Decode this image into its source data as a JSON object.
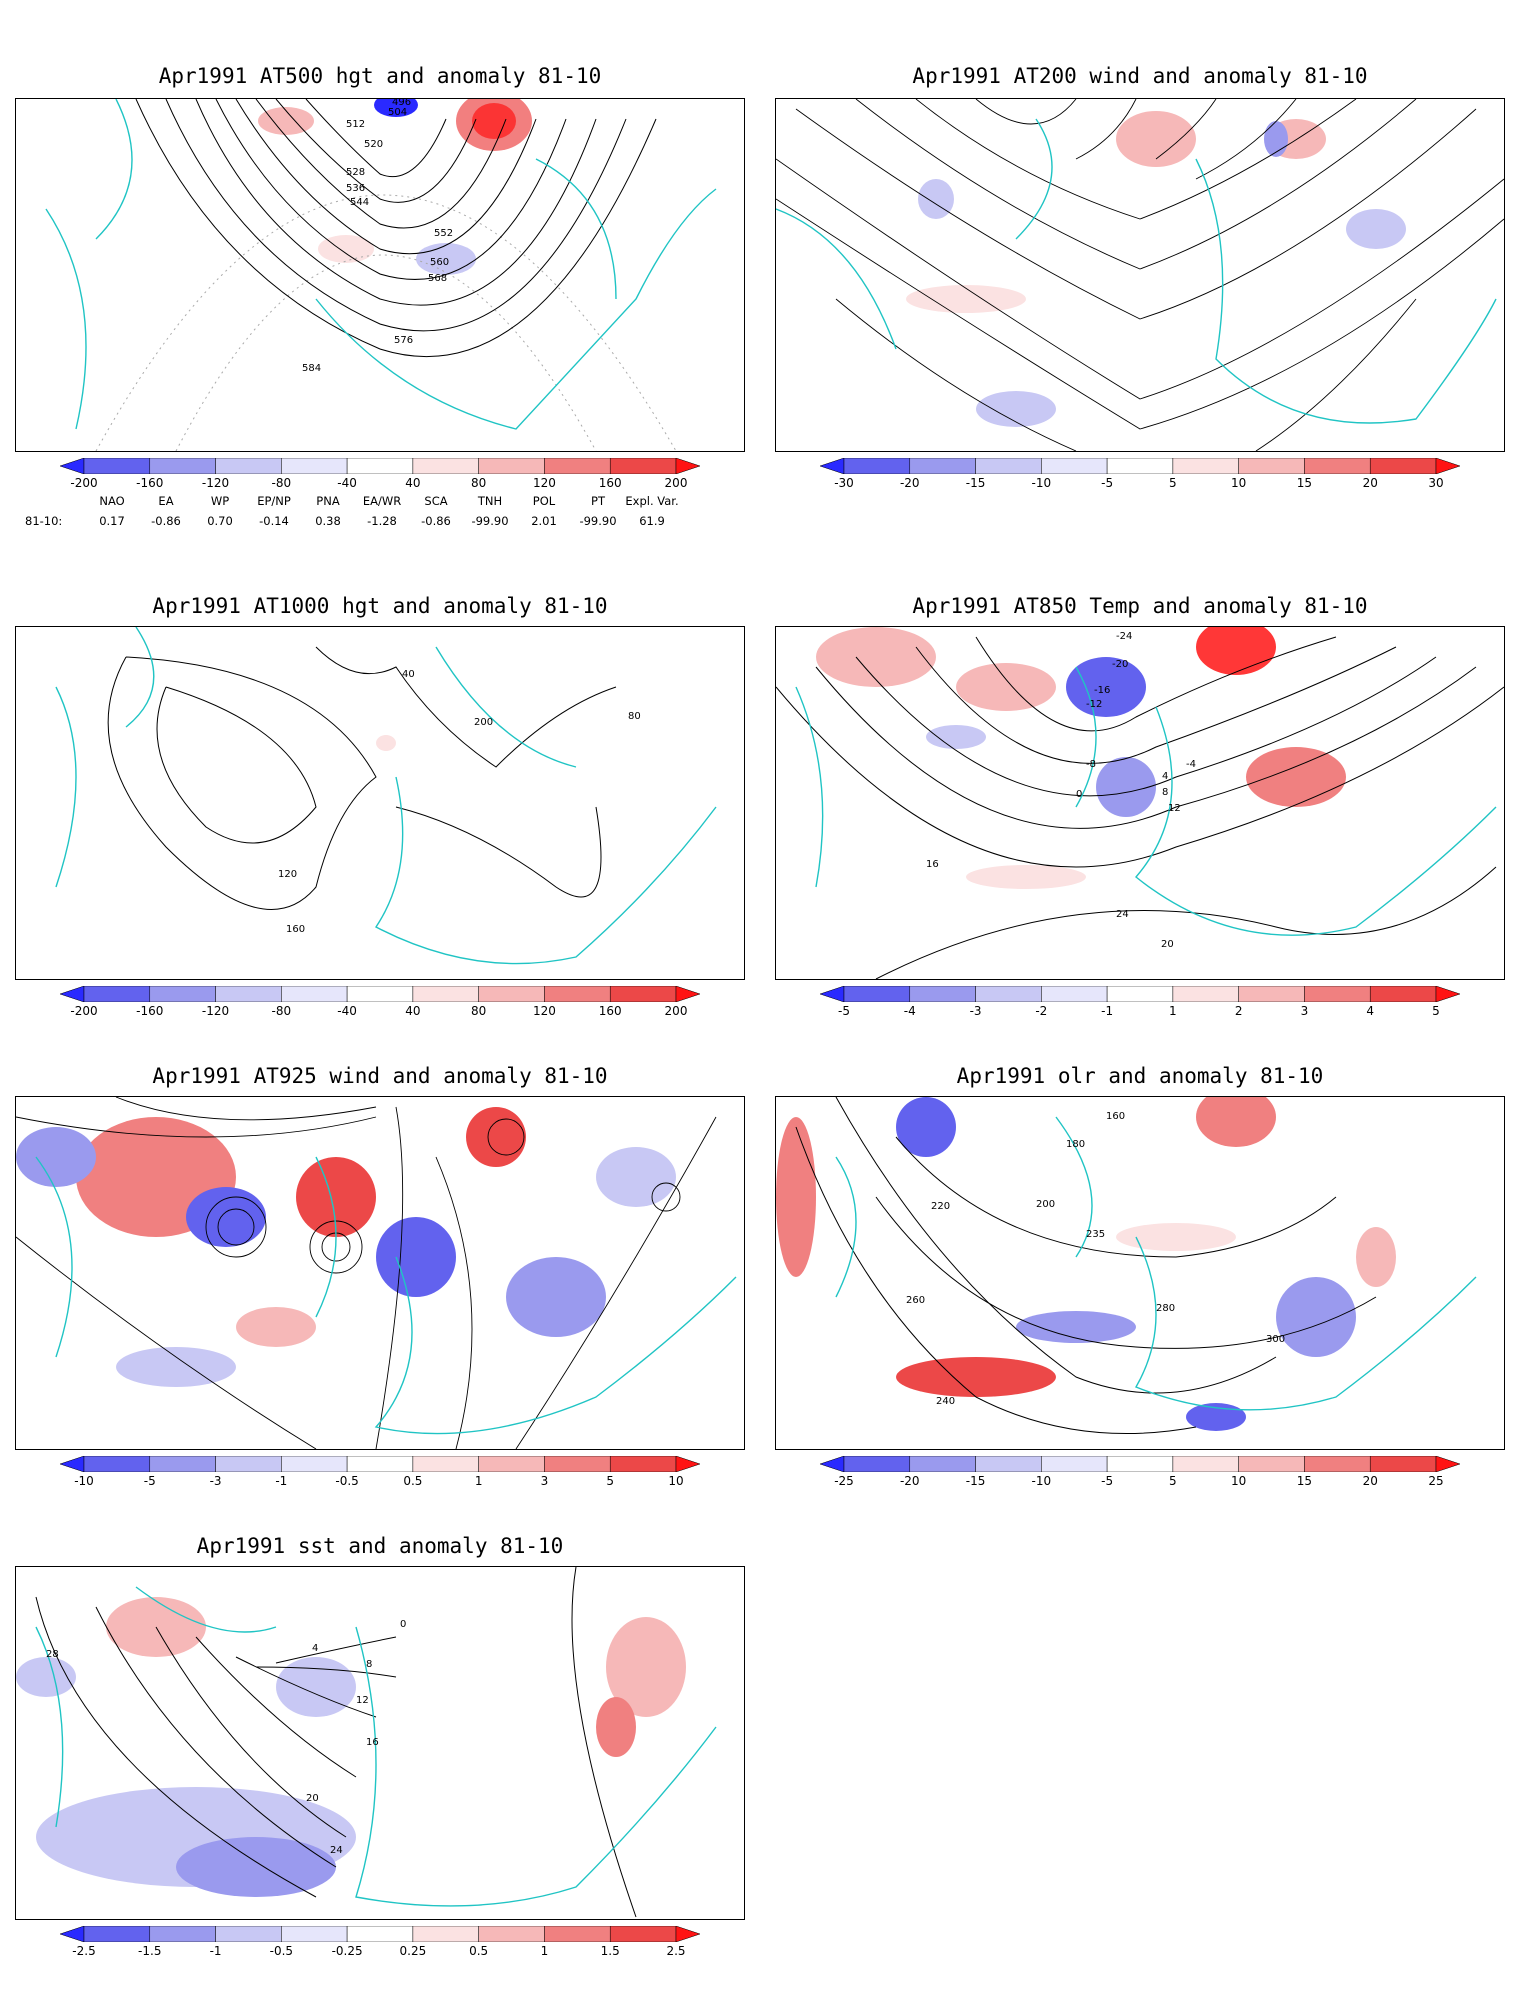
{
  "panels": [
    {
      "id": "p500",
      "title": "Apr1991 AT500 hgt and anomaly 81-10",
      "contours": [
        "584",
        "576",
        "568",
        "560",
        "552",
        "544",
        "536",
        "528",
        "520",
        "512",
        "504",
        "496"
      ],
      "field": "hgt"
    },
    {
      "id": "p200",
      "title": "Apr1991 AT200 wind and anomaly 81-10",
      "contours": [],
      "field": "wind"
    },
    {
      "id": "p1000",
      "title": "Apr1991 AT1000 hgt and anomaly 81-10",
      "contours": [
        "160",
        "120",
        "80",
        "40",
        "200"
      ],
      "field": "hgt"
    },
    {
      "id": "p850",
      "title": "Apr1991 AT850 Temp and anomaly 81-10",
      "contours": [
        "16",
        "20",
        "24",
        "0",
        "-4",
        "-8",
        "-12",
        "-16",
        "-20",
        "-24",
        "4",
        "8",
        "12"
      ],
      "field": "temp"
    },
    {
      "id": "p925",
      "title": "Apr1991 AT925 wind and anomaly 81-10",
      "contours": [],
      "field": "wind"
    },
    {
      "id": "polr",
      "title": "Apr1991 olr and anomaly 81-10",
      "contours": [
        "235",
        "240",
        "260",
        "280",
        "300",
        "220",
        "200",
        "180",
        "160"
      ],
      "field": "olr"
    },
    {
      "id": "psst",
      "title": "Apr1991 sst and anomaly 81-10",
      "contours": [
        "28",
        "24",
        "20",
        "16",
        "12",
        "8",
        "4",
        "0"
      ],
      "field": "sst"
    }
  ],
  "colorbars": {
    "hgt": [
      "-200",
      "-160",
      "-120",
      "-80",
      "-40",
      "40",
      "80",
      "120",
      "160",
      "200"
    ],
    "wind200": [
      "-30",
      "-20",
      "-15",
      "-10",
      "-5",
      "5",
      "10",
      "15",
      "20",
      "30"
    ],
    "temp": [
      "-5",
      "-4",
      "-3",
      "-2",
      "-1",
      "1",
      "2",
      "3",
      "4",
      "5"
    ],
    "wind925": [
      "-10",
      "-5",
      "-3",
      "-1",
      "-0.5",
      "0.5",
      "1",
      "3",
      "5",
      "10"
    ],
    "olr": [
      "-25",
      "-20",
      "-15",
      "-10",
      "-5",
      "5",
      "10",
      "15",
      "20",
      "25"
    ],
    "sst": [
      "-2.5",
      "-1.5",
      "-1",
      "-0.5",
      "-0.25",
      "0.25",
      "0.5",
      "1",
      "1.5",
      "2.5"
    ]
  },
  "colors": [
    "#2a2aff",
    "#6262ee",
    "#9a9aee",
    "#c8c8f4",
    "#e6e6fb",
    "#ffffff",
    "#fbe2e2",
    "#f6b8b8",
    "#f08080",
    "#ec4848",
    "#ff1414"
  ],
  "map_line_color": "#20c4c4",
  "teleconnections": {
    "row_label": "81-10:",
    "indices": [
      {
        "name": "NAO",
        "value": "0.17"
      },
      {
        "name": "EA",
        "value": "-0.86"
      },
      {
        "name": "WP",
        "value": "0.70"
      },
      {
        "name": "EP/NP",
        "value": "-0.14"
      },
      {
        "name": "PNA",
        "value": "0.38"
      },
      {
        "name": "EA/WR",
        "value": "-1.28"
      },
      {
        "name": "SCA",
        "value": "-0.86"
      },
      {
        "name": "TNH",
        "value": "-99.90"
      },
      {
        "name": "POL",
        "value": "2.01"
      },
      {
        "name": "PT",
        "value": "-99.90"
      },
      {
        "name": "Expl. Var.",
        "value": "61.9"
      }
    ]
  }
}
